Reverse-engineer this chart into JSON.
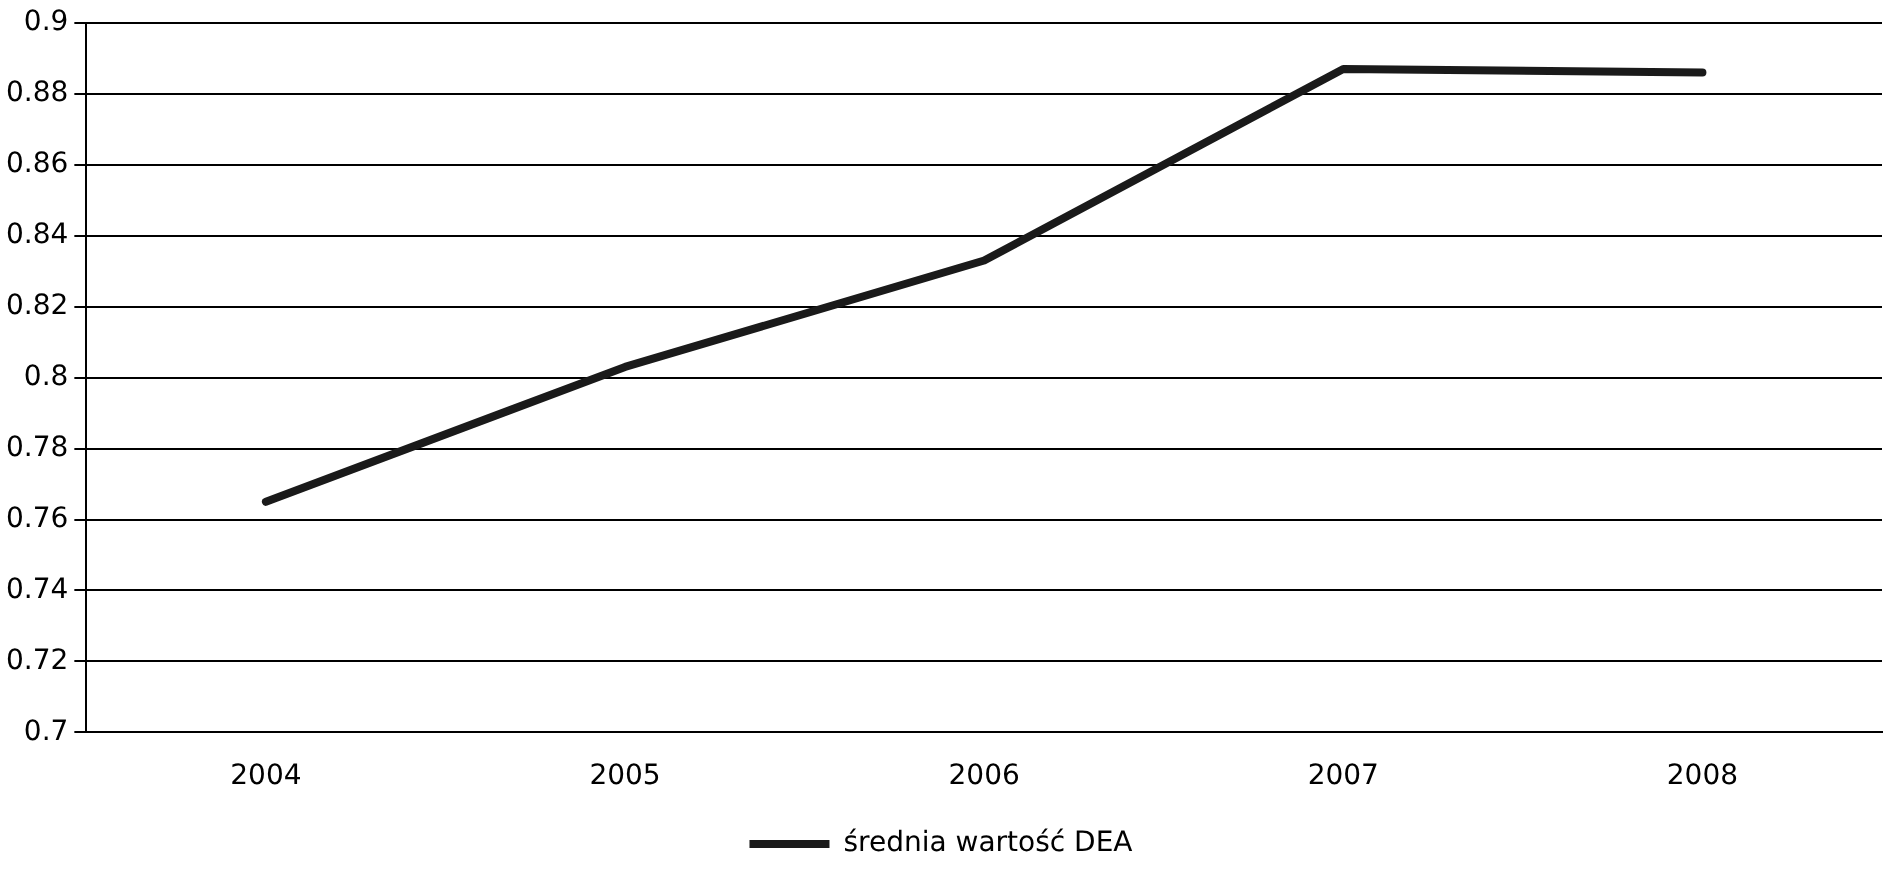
{
  "chart_data": {
    "type": "line",
    "categories": [
      "2004",
      "2005",
      "2006",
      "2007",
      "2008"
    ],
    "series": [
      {
        "name": "średnia wartość DEA",
        "color": "#1a1a1a",
        "values": [
          0.765,
          0.803,
          0.833,
          0.887,
          0.886
        ]
      }
    ],
    "ylim": [
      0.7,
      0.9
    ],
    "yticks": [
      {
        "value": 0.7,
        "label": "0.7"
      },
      {
        "value": 0.72,
        "label": "0.72"
      },
      {
        "value": 0.74,
        "label": "0.74"
      },
      {
        "value": 0.76,
        "label": "0.76"
      },
      {
        "value": 0.78,
        "label": "0.78"
      },
      {
        "value": 0.8,
        "label": "0.8"
      },
      {
        "value": 0.82,
        "label": "0.82"
      },
      {
        "value": 0.84,
        "label": "0.84"
      },
      {
        "value": 0.86,
        "label": "0.86"
      },
      {
        "value": 0.88,
        "label": "0.88"
      },
      {
        "value": 0.9,
        "label": "0.9"
      }
    ],
    "grid": "y",
    "legend": "bottom",
    "marker": "none",
    "line_style": "solid"
  }
}
